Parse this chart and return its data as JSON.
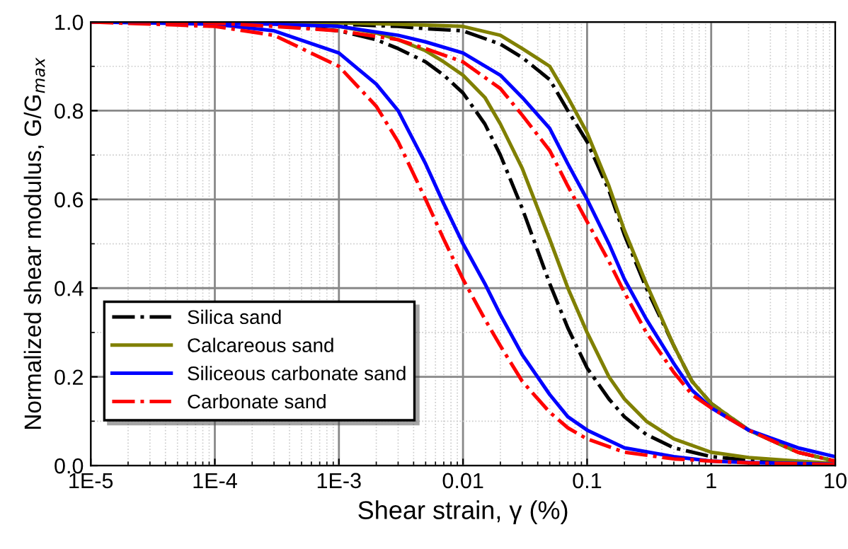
{
  "chart_data": {
    "type": "line",
    "xlabel": "Shear strain, γ (%)",
    "ylabel": "Normalized shear modulus, G/G$_{max}$",
    "log": "x",
    "grid": true,
    "legend": "bottom left",
    "marker": "none",
    "xlim": [
      1e-05,
      10
    ],
    "xticks": [
      {
        "value": 1e-05,
        "label": "1E-5"
      },
      {
        "value": 0.0001,
        "label": "1E-4"
      },
      {
        "value": 0.001,
        "label": "1E-3"
      },
      {
        "value": 0.01,
        "label": "0.01"
      },
      {
        "value": 0.1,
        "label": "0.1"
      },
      {
        "value": 1,
        "label": "1"
      },
      {
        "value": 10,
        "label": "10"
      }
    ],
    "ylim": [
      0,
      1
    ],
    "yticks": [
      {
        "value": 0,
        "label": "0.0"
      },
      {
        "value": 0.1,
        "label": null
      },
      {
        "value": 0.2,
        "label": "0.2"
      },
      {
        "value": 0.3,
        "label": null
      },
      {
        "value": 0.4,
        "label": "0.4"
      },
      {
        "value": 0.5,
        "label": null
      },
      {
        "value": 0.6,
        "label": "0.6"
      },
      {
        "value": 0.7,
        "label": null
      },
      {
        "value": 0.8,
        "label": "0.8"
      },
      {
        "value": 0.9,
        "label": null
      },
      {
        "value": 1,
        "label": "1.0"
      }
    ],
    "series": [
      {
        "name": "Silica sand",
        "color": "#000000",
        "line_style": "dashdot",
        "x": [
          1e-05,
          0.0001,
          0.0003,
          0.001,
          0.002,
          0.003,
          0.005,
          0.007,
          0.01,
          0.015,
          0.02,
          0.03,
          0.05,
          0.07,
          0.1,
          0.15,
          0.2,
          0.3,
          0.5,
          1,
          2,
          5,
          10
        ],
        "values": [
          1.0,
          1.0,
          0.995,
          0.98,
          0.96,
          0.94,
          0.91,
          0.88,
          0.84,
          0.77,
          0.7,
          0.58,
          0.41,
          0.31,
          0.22,
          0.15,
          0.11,
          0.07,
          0.04,
          0.02,
          0.012,
          0.007,
          0.005
        ]
      },
      {
        "name": "Calcareous sand",
        "color": "#808000",
        "line_style": "solid",
        "x": [
          1e-05,
          0.0001,
          0.0003,
          0.001,
          0.002,
          0.003,
          0.005,
          0.007,
          0.01,
          0.015,
          0.02,
          0.03,
          0.05,
          0.07,
          0.1,
          0.15,
          0.2,
          0.3,
          0.5,
          1,
          2,
          5,
          10
        ],
        "values": [
          1.0,
          1.0,
          0.998,
          0.99,
          0.975,
          0.96,
          0.935,
          0.91,
          0.88,
          0.83,
          0.77,
          0.67,
          0.51,
          0.4,
          0.3,
          0.2,
          0.15,
          0.1,
          0.06,
          0.03,
          0.018,
          0.01,
          0.005
        ]
      },
      {
        "name": "Siliceous carbonate sand",
        "color": "#0000ff",
        "line_style": "solid",
        "x": [
          1e-05,
          0.0001,
          0.0003,
          0.001,
          0.002,
          0.003,
          0.005,
          0.007,
          0.01,
          0.015,
          0.02,
          0.03,
          0.05,
          0.07,
          0.1,
          0.2,
          0.5,
          1,
          2,
          5,
          10
        ],
        "values": [
          1.0,
          0.995,
          0.98,
          0.93,
          0.86,
          0.8,
          0.68,
          0.59,
          0.5,
          0.41,
          0.34,
          0.25,
          0.16,
          0.11,
          0.08,
          0.04,
          0.02,
          0.01,
          0.007,
          0.005,
          0.003
        ]
      },
      {
        "name": "Carbonate sand",
        "color": "#ff0000",
        "line_style": "dashdot",
        "x": [
          1e-05,
          0.0001,
          0.0003,
          0.001,
          0.002,
          0.003,
          0.005,
          0.007,
          0.01,
          0.015,
          0.02,
          0.03,
          0.05,
          0.07,
          0.1,
          0.2,
          0.5,
          1,
          2,
          5,
          10
        ],
        "values": [
          1.0,
          0.99,
          0.97,
          0.9,
          0.81,
          0.73,
          0.6,
          0.51,
          0.42,
          0.33,
          0.27,
          0.19,
          0.12,
          0.085,
          0.06,
          0.03,
          0.015,
          0.01,
          0.006,
          0.004,
          0.002
        ]
      },
      {
        "color": "#000000",
        "line_style": "dashdot",
        "x": [
          2e-05,
          0.0001,
          0.0003,
          0.001,
          0.003,
          0.005,
          0.01,
          0.02,
          0.03,
          0.05,
          0.07,
          0.1,
          0.15,
          0.2,
          0.3,
          0.5,
          0.7,
          1,
          2,
          5,
          10
        ],
        "values": [
          1.0,
          1.0,
          0.998,
          0.995,
          0.99,
          0.985,
          0.98,
          0.95,
          0.92,
          0.87,
          0.8,
          0.73,
          0.62,
          0.52,
          0.4,
          0.27,
          0.19,
          0.14,
          0.08,
          0.03,
          0.01
        ]
      },
      {
        "color": "#808000",
        "line_style": "solid",
        "x": [
          2e-05,
          0.0001,
          0.0003,
          0.001,
          0.003,
          0.005,
          0.01,
          0.02,
          0.03,
          0.05,
          0.07,
          0.1,
          0.15,
          0.2,
          0.3,
          0.5,
          0.7,
          1,
          2,
          5,
          10
        ],
        "values": [
          1.0,
          1.0,
          1.0,
          0.998,
          0.995,
          0.993,
          0.99,
          0.97,
          0.94,
          0.9,
          0.83,
          0.75,
          0.63,
          0.53,
          0.41,
          0.27,
          0.19,
          0.14,
          0.08,
          0.03,
          0.01
        ]
      },
      {
        "color": "#0000ff",
        "line_style": "solid",
        "x": [
          2e-05,
          0.0001,
          0.0003,
          0.001,
          0.003,
          0.005,
          0.01,
          0.02,
          0.03,
          0.05,
          0.07,
          0.1,
          0.15,
          0.2,
          0.3,
          0.5,
          0.7,
          1,
          2,
          5,
          10
        ],
        "values": [
          1.0,
          0.998,
          0.995,
          0.99,
          0.97,
          0.955,
          0.93,
          0.88,
          0.83,
          0.76,
          0.68,
          0.6,
          0.5,
          0.42,
          0.33,
          0.23,
          0.17,
          0.13,
          0.08,
          0.04,
          0.02
        ]
      },
      {
        "color": "#ff0000",
        "line_style": "dashdot",
        "x": [
          2e-05,
          0.0001,
          0.0003,
          0.001,
          0.003,
          0.005,
          0.01,
          0.02,
          0.03,
          0.05,
          0.07,
          0.1,
          0.15,
          0.2,
          0.3,
          0.5,
          0.7,
          1,
          2,
          5,
          10
        ],
        "values": [
          1.0,
          0.998,
          0.99,
          0.98,
          0.96,
          0.94,
          0.91,
          0.85,
          0.79,
          0.71,
          0.63,
          0.55,
          0.46,
          0.39,
          0.3,
          0.21,
          0.16,
          0.13,
          0.08,
          0.03,
          0.01
        ]
      }
    ]
  }
}
